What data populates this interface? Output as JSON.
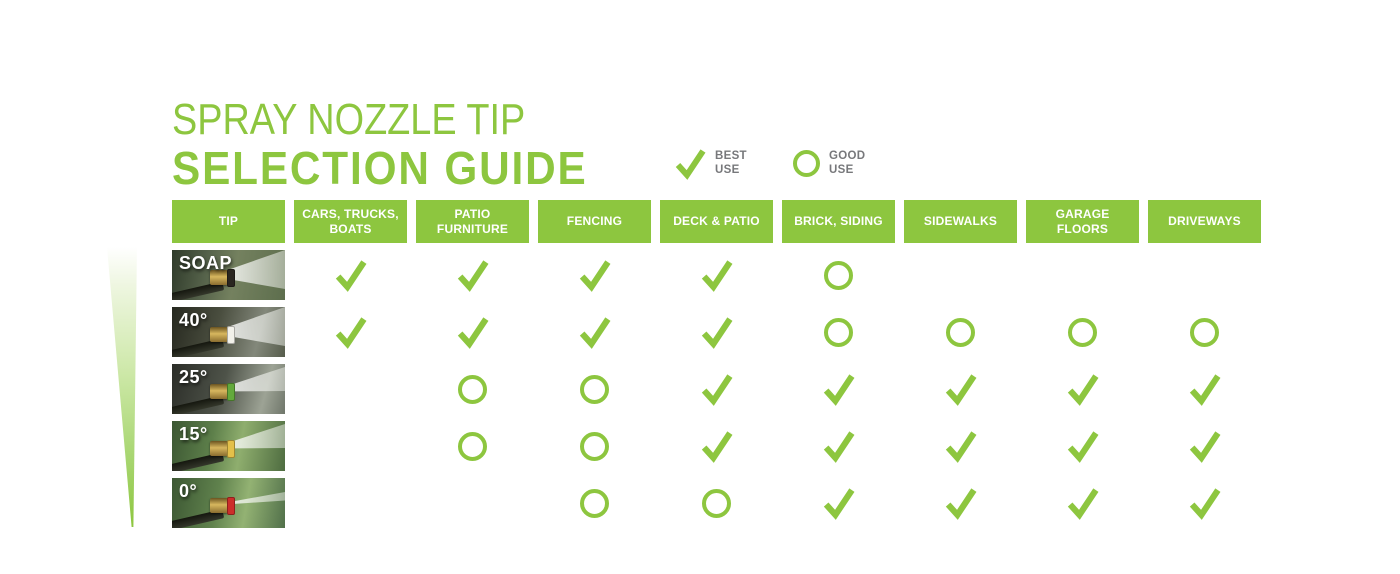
{
  "title": {
    "line1": "SPRAY NOZZLE TIP",
    "line2": "SELECTION GUIDE"
  },
  "legend": {
    "best_label": "BEST USE",
    "good_label": "GOOD USE"
  },
  "colors": {
    "green": "#8DC63F",
    "legend_text": "#77787B",
    "header_text": "#FFFFFF"
  },
  "icons": {
    "best": "check-icon",
    "good": "circle-icon"
  },
  "table": {
    "columns": [
      "TIP",
      "CARS, TRUCKS, BOATS",
      "PATIO FURNITURE",
      "FENCING",
      "DECK & PATIO",
      "BRICK, SIDING",
      "SIDEWALKS",
      "GARAGE FLOORS",
      "DRIVEWAYS"
    ],
    "rows": [
      {
        "tip": "SOAP",
        "photo": "soap",
        "tip_color": "#2a2620",
        "spray": "wide",
        "marks": [
          "best",
          "best",
          "best",
          "best",
          "good",
          "none",
          "none",
          "none"
        ]
      },
      {
        "tip": "40°",
        "photo": "deg40",
        "tip_color": "#f2f1ea",
        "spray": "wide",
        "marks": [
          "best",
          "best",
          "best",
          "best",
          "good",
          "good",
          "good",
          "good"
        ]
      },
      {
        "tip": "25°",
        "photo": "deg25",
        "tip_color": "#63a93c",
        "spray": "med",
        "marks": [
          "none",
          "good",
          "good",
          "best",
          "best",
          "best",
          "best",
          "best"
        ]
      },
      {
        "tip": "15°",
        "photo": "deg15",
        "tip_color": "#e3c04a",
        "spray": "med",
        "marks": [
          "none",
          "good",
          "good",
          "best",
          "best",
          "best",
          "best",
          "best"
        ]
      },
      {
        "tip": "0°",
        "photo": "deg0",
        "tip_color": "#cc2e2a",
        "spray": "thin",
        "marks": [
          "none",
          "none",
          "good",
          "good",
          "best",
          "best",
          "best",
          "best"
        ]
      }
    ]
  },
  "chart_data": {
    "type": "table",
    "title": "SPRAY NOZZLE TIP SELECTION GUIDE",
    "legend": {
      "check": "BEST USE",
      "circle": "GOOD USE"
    },
    "columns": [
      "TIP",
      "CARS, TRUCKS, BOATS",
      "PATIO FURNITURE",
      "FENCING",
      "DECK & PATIO",
      "BRICK, SIDING",
      "SIDEWALKS",
      "GARAGE FLOORS",
      "DRIVEWAYS"
    ],
    "rows": [
      [
        "SOAP",
        "best",
        "best",
        "best",
        "best",
        "good",
        "",
        "",
        ""
      ],
      [
        "40°",
        "best",
        "best",
        "best",
        "best",
        "good",
        "good",
        "good",
        "good"
      ],
      [
        "25°",
        "",
        "good",
        "good",
        "best",
        "best",
        "best",
        "best",
        "best"
      ],
      [
        "15°",
        "",
        "good",
        "good",
        "best",
        "best",
        "best",
        "best",
        "best"
      ],
      [
        "0°",
        "",
        "",
        "good",
        "good",
        "best",
        "best",
        "best",
        "best"
      ]
    ]
  }
}
